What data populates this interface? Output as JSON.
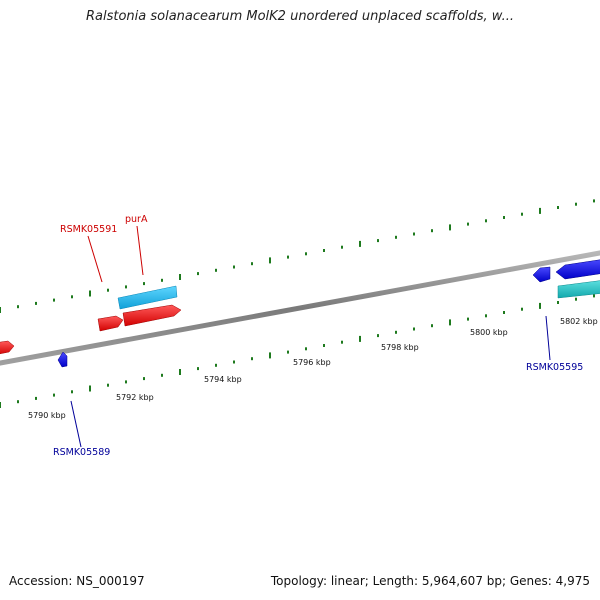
{
  "title": "Ralstonia solanacearum MolK2 unordered unplaced scaffolds, w...",
  "footer": {
    "accession": "Accession: NS_000197",
    "summary": "Topology: linear; Length: 5,964,607 bp; Genes: 4,975"
  },
  "colors": {
    "backbone": "#8c8c8c",
    "tick": "#1e7a1e",
    "gene_forward": "#ee1111",
    "gene_reverse": "#1111ee",
    "cds_forward": "#22b8ee",
    "cds_reverse": "#22c4c8",
    "label_forward": "#cc0000",
    "label_reverse": "#000099"
  },
  "coordinates": {
    "unit": "kbp",
    "tick_labels": [
      "5790 kbp",
      "5792 kbp",
      "5794 kbp",
      "5796 kbp",
      "5798 kbp",
      "5800 kbp",
      "5802 kbp"
    ]
  },
  "genes": [
    {
      "name": "RSMK05591",
      "strand": "forward",
      "labeled": true
    },
    {
      "name": "purA",
      "strand": "forward",
      "labeled": true
    },
    {
      "name": "RSMK05589",
      "strand": "reverse",
      "labeled": true
    },
    {
      "name": "RSMK05595",
      "strand": "reverse",
      "labeled": true
    }
  ]
}
